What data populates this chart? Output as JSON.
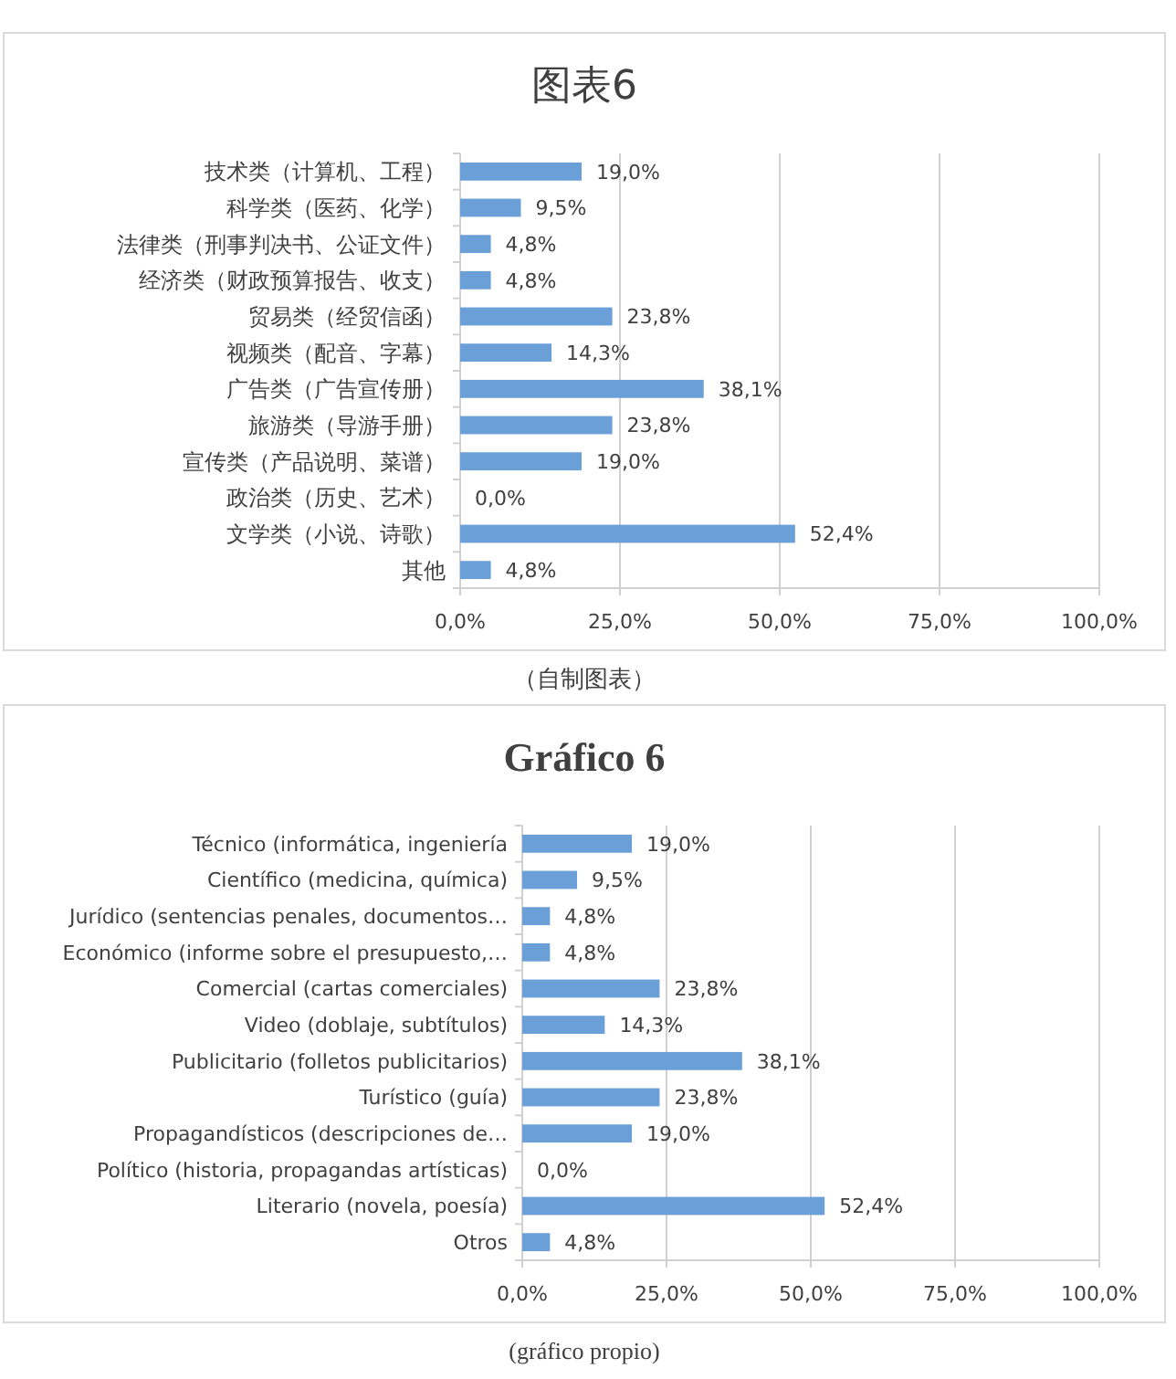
{
  "chart_data": [
    {
      "type": "bar",
      "orientation": "horizontal",
      "title": "图表6",
      "categories": [
        "技术类（计算机、工程）",
        "科学类（医药、化学）",
        "法律类（刑事判决书、公证文件）",
        "经济类（财政预算报告、收支）",
        "贸易类（经贸信函）",
        "视频类（配音、字幕）",
        "广告类（广告宣传册）",
        "旅游类（导游手册）",
        "宣传类（产品说明、菜谱）",
        "政治类（历史、艺术）",
        "文学类（小说、诗歌）",
        "其他"
      ],
      "values": [
        19.0,
        9.5,
        4.8,
        4.8,
        23.8,
        14.3,
        38.1,
        23.8,
        19.0,
        0.0,
        52.4,
        4.8
      ],
      "value_labels": [
        "19,0%",
        "9,5%",
        "4,8%",
        "4,8%",
        "23,8%",
        "14,3%",
        "38,1%",
        "23,8%",
        "19,0%",
        "0,0%",
        "52,4%",
        "4,8%"
      ],
      "color": "#6a9fd8",
      "xlim": [
        0,
        100
      ],
      "xticks": [
        {
          "value": 0,
          "label": "0,0%"
        },
        {
          "value": 25,
          "label": "25,0%"
        },
        {
          "value": 50,
          "label": "50,0%"
        },
        {
          "value": 75,
          "label": "75,0%"
        },
        {
          "value": 100,
          "label": "100,0%"
        }
      ],
      "grid": "x",
      "annotations": [
        "（自制图表）"
      ]
    },
    {
      "type": "bar",
      "orientation": "horizontal",
      "title": "Gráfico 6",
      "categories": [
        "Técnico (informática, ingeniería",
        "Científico (medicina, química)",
        "Jurídico (sentencias penales, documentos…",
        "Económico (informe sobre el presupuesto,…",
        "Comercial (cartas comerciales)",
        "Video (doblaje, subtítulos)",
        "Publicitario (folletos publicitarios)",
        "Turístico (guía)",
        "Propagandísticos (descripciones de…",
        "Político (historia, propagandas artísticas)",
        "Literario (novela, poesía)",
        "Otros"
      ],
      "values": [
        19.0,
        9.5,
        4.8,
        4.8,
        23.8,
        14.3,
        38.1,
        23.8,
        19.0,
        0.0,
        52.4,
        4.8
      ],
      "value_labels": [
        "19,0%",
        "9,5%",
        "4,8%",
        "4,8%",
        "23,8%",
        "14,3%",
        "38,1%",
        "23,8%",
        "19,0%",
        "0,0%",
        "52,4%",
        "4,8%"
      ],
      "color": "#6a9fd8",
      "xlim": [
        0,
        100
      ],
      "xticks": [
        {
          "value": 0,
          "label": "0,0%"
        },
        {
          "value": 25,
          "label": "25,0%"
        },
        {
          "value": 50,
          "label": "50,0%"
        },
        {
          "value": 75,
          "label": "75,0%"
        },
        {
          "value": 100,
          "label": "100,0%"
        }
      ],
      "grid": "x",
      "annotations": [
        "(gráfico propio)"
      ]
    }
  ]
}
